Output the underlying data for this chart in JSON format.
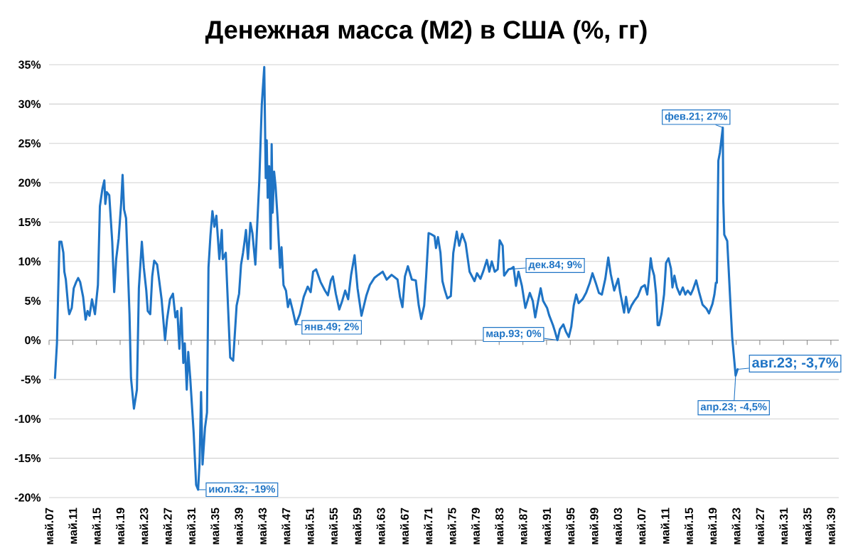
{
  "chart_data": {
    "type": "line",
    "title": "Денежная масса (M2) в США (%, гг)",
    "x": [
      "1908-05",
      "1908-09",
      "1909-02",
      "1909-06",
      "1909-10",
      "1909-12",
      "1910-03",
      "1910-08",
      "1910-10",
      "1911-03",
      "1911-07",
      "1911-12",
      "1912-04",
      "1912-08",
      "1913-02",
      "1913-07",
      "1913-11",
      "1914-03",
      "1914-08",
      "1915-02",
      "1915-08",
      "1915-12",
      "1916-05",
      "1916-09",
      "1916-11",
      "1917-02",
      "1917-07",
      "1918-01",
      "1918-05",
      "1918-09",
      "1919-02",
      "1919-07",
      "1919-10",
      "1920-01",
      "1920-05",
      "1920-12",
      "1921-03",
      "1921-09",
      "1922-03",
      "1922-07",
      "1923-01",
      "1923-05",
      "1923-10",
      "1924-01",
      "1924-06",
      "1924-10",
      "1925-02",
      "1925-08",
      "1926-05",
      "1926-12",
      "1927-04",
      "1927-10",
      "1928-04",
      "1928-09",
      "1929-01",
      "1929-05",
      "1929-09",
      "1930-01",
      "1930-04",
      "1930-08",
      "1930-11",
      "1931-03",
      "1931-10",
      "1932-03",
      "1932-07",
      "1932-10",
      "1933-01",
      "1933-04",
      "1933-09",
      "1934-01",
      "1934-04",
      "1934-08",
      "1934-12",
      "1935-04",
      "1935-08",
      "1936-02",
      "1936-07",
      "1936-09",
      "1937-03",
      "1937-08",
      "1937-12",
      "1938-06",
      "1939-01",
      "1939-06",
      "1939-10",
      "1940-02",
      "1940-05",
      "1940-08",
      "1940-12",
      "1941-05",
      "1941-09",
      "1942-03",
      "1942-11",
      "1943-04",
      "1943-09",
      "1943-12",
      "1944-02",
      "1944-04",
      "1944-07",
      "1944-10",
      "1944-12",
      "1945-02",
      "1945-05",
      "1945-08",
      "1945-12",
      "1946-05",
      "1946-08",
      "1946-12",
      "1947-05",
      "1947-09",
      "1948-01",
      "1948-07",
      "1949-01",
      "1949-09",
      "1950-05",
      "1951-01",
      "1951-07",
      "1951-12",
      "1952-06",
      "1953-03",
      "1953-12",
      "1954-06",
      "1954-12",
      "1955-04",
      "1955-10",
      "1956-05",
      "1956-11",
      "1957-05",
      "1957-11",
      "1958-05",
      "1958-12",
      "1959-06",
      "1960-02",
      "1960-12",
      "1961-07",
      "1962-04",
      "1962-12",
      "1963-09",
      "1964-05",
      "1965-03",
      "1966-03",
      "1966-08",
      "1967-01",
      "1967-06",
      "1967-12",
      "1968-08",
      "1969-04",
      "1969-10",
      "1970-03",
      "1970-09",
      "1971-01",
      "1971-06",
      "1971-10",
      "1972-06",
      "1972-09",
      "1973-01",
      "1973-06",
      "1973-10",
      "1974-03",
      "1974-08",
      "1975-03",
      "1975-08",
      "1976-03",
      "1976-08",
      "1977-02",
      "1977-09",
      "1978-05",
      "1979-03",
      "1979-08",
      "1980-03",
      "1980-09",
      "1981-04",
      "1981-09",
      "1982-02",
      "1982-08",
      "1983-02",
      "1983-06",
      "1983-12",
      "1984-03",
      "1984-12",
      "1985-06",
      "1985-10",
      "1986-03",
      "1986-08",
      "1987-03",
      "1987-10",
      "1988-07",
      "1989-01",
      "1989-06",
      "1989-12",
      "1990-05",
      "1990-10",
      "1991-06",
      "1991-10",
      "1992-06",
      "1992-10",
      "1993-03",
      "1993-08",
      "1994-03",
      "1994-08",
      "1995-02",
      "1995-07",
      "1995-12",
      "1996-05",
      "1996-10",
      "1997-06",
      "1998-01",
      "1998-08",
      "1999-02",
      "1999-09",
      "2000-03",
      "2000-09",
      "2001-04",
      "2001-10",
      "2002-03",
      "2002-10",
      "2003-06",
      "2003-10",
      "2004-06",
      "2004-10",
      "2005-03",
      "2005-09",
      "2006-03",
      "2006-10",
      "2007-05",
      "2007-12",
      "2008-05",
      "2008-08",
      "2008-12",
      "2009-03",
      "2009-07",
      "2009-11",
      "2010-02",
      "2010-05",
      "2010-10",
      "2011-03",
      "2011-07",
      "2011-12",
      "2012-05",
      "2012-08",
      "2012-12",
      "2013-05",
      "2013-11",
      "2014-05",
      "2014-10",
      "2015-03",
      "2015-09",
      "2016-02",
      "2016-08",
      "2017-02",
      "2017-09",
      "2018-05",
      "2018-10",
      "2019-05",
      "2019-09",
      "2019-12",
      "2020-02",
      "2020-05",
      "2020-08",
      "2021-02",
      "2021-03",
      "2021-05",
      "2021-11",
      "2022-05",
      "2022-09",
      "2023-04",
      "2023-08"
    ],
    "series": [
      {
        "color": "#1f74c5",
        "values": [
          -4.8,
          -0.4,
          12.5,
          12.5,
          11.1,
          8.7,
          7.7,
          4.1,
          3.3,
          4.1,
          6.6,
          7.4,
          7.9,
          7.4,
          5.5,
          2.6,
          3.7,
          3.1,
          5.2,
          3.3,
          7.0,
          17.0,
          19.2,
          20.3,
          17.3,
          18.8,
          18.4,
          12.5,
          6.1,
          10.3,
          12.9,
          17.3,
          21.0,
          16.6,
          15.5,
          3.3,
          -4.8,
          -8.7,
          -6.3,
          6.6,
          12.5,
          9.2,
          6.3,
          3.7,
          3.3,
          8.1,
          10.1,
          9.6,
          5.2,
          0,
          2.6,
          5.2,
          5.9,
          2.9,
          3.7,
          -1.1,
          4.1,
          -2.9,
          -0.4,
          -6.3,
          -1.5,
          -4.8,
          -11.8,
          -18.4,
          -19,
          -15.5,
          -6.6,
          -15.8,
          -11.1,
          -9.2,
          9.2,
          13.3,
          16.4,
          14.4,
          15.8,
          10.3,
          14.0,
          10.3,
          11.1,
          3.7,
          -2.2,
          -2.6,
          4.4,
          5.9,
          9.6,
          11.1,
          12.5,
          14.0,
          10.3,
          14.9,
          13.6,
          9.6,
          20.3,
          29.9,
          34.7,
          20.6,
          25.4,
          18.1,
          22.1,
          11.6,
          24.9,
          16.2,
          21.4,
          19.5,
          15.5,
          9.2,
          11.8,
          7.0,
          6.3,
          4.2,
          5.2,
          3.7,
          2,
          3.3,
          5.5,
          6.8,
          6.1,
          8.7,
          9.0,
          7.4,
          6.3,
          5.7,
          7.6,
          8.1,
          5.9,
          3.9,
          5.0,
          6.3,
          5.2,
          8.3,
          10.8,
          6.6,
          3.1,
          5.7,
          7.0,
          7.9,
          8.3,
          8.7,
          7.7,
          8.3,
          7.7,
          5.5,
          4.2,
          8.1,
          9.4,
          7.7,
          7.6,
          4.4,
          2.7,
          4.4,
          8.1,
          13.6,
          13.5,
          13.2,
          11.7,
          13.1,
          11.1,
          7.5,
          6.3,
          5.3,
          5.6,
          11.1,
          13.8,
          12.0,
          13.5,
          12.3,
          8.7,
          7.5,
          8.5,
          7.8,
          8.8,
          10.2,
          8.7,
          10.0,
          8.7,
          9.0,
          12.7,
          12.0,
          8.2,
          9,
          9.1,
          9.3,
          6.9,
          8.7,
          6.9,
          4.1,
          6.0,
          5.0,
          2.9,
          5.0,
          6.6,
          5.0,
          4.1,
          3.2,
          1.9,
          1.1,
          0,
          1.4,
          2.0,
          1.1,
          0.4,
          1.7,
          4.4,
          5.8,
          4.7,
          5.2,
          6.0,
          7.2,
          8.5,
          7.2,
          6.0,
          5.8,
          7.8,
          10.5,
          8.4,
          6.3,
          7.8,
          6.1,
          3.5,
          5.5,
          3.5,
          4.4,
          5.0,
          5.6,
          6.7,
          7.0,
          5.8,
          7.6,
          10.4,
          9.1,
          8.2,
          5.8,
          1.9,
          1.9,
          3.4,
          5.8,
          9.8,
          10.4,
          9.1,
          6.7,
          8.2,
          6.7,
          5.8,
          6.7,
          5.8,
          6.3,
          5.8,
          6.5,
          7.6,
          6.1,
          4.5,
          4.0,
          3.4,
          4.6,
          5.8,
          7.3,
          7.3,
          22.8,
          23.8,
          27,
          17.7,
          13.4,
          12.6,
          5.2,
          0.4,
          -4.5,
          -3.7
        ]
      }
    ],
    "xlim": [
      "1907-05",
      "2040-09"
    ],
    "ylim": [
      -20,
      35
    ],
    "xticks": [
      {
        "value": "1907-05",
        "label": "май.07"
      },
      {
        "value": "1911-05",
        "label": "май.11"
      },
      {
        "value": "1915-05",
        "label": "май.15"
      },
      {
        "value": "1919-05",
        "label": "май.19"
      },
      {
        "value": "1923-05",
        "label": "май.23"
      },
      {
        "value": "1927-05",
        "label": "май.27"
      },
      {
        "value": "1931-05",
        "label": "май.31"
      },
      {
        "value": "1935-05",
        "label": "май.35"
      },
      {
        "value": "1939-05",
        "label": "май.39"
      },
      {
        "value": "1943-05",
        "label": "май.43"
      },
      {
        "value": "1947-05",
        "label": "май.47"
      },
      {
        "value": "1951-05",
        "label": "май.51"
      },
      {
        "value": "1955-05",
        "label": "май.55"
      },
      {
        "value": "1959-05",
        "label": "май.59"
      },
      {
        "value": "1963-05",
        "label": "май.63"
      },
      {
        "value": "1967-05",
        "label": "май.67"
      },
      {
        "value": "1971-05",
        "label": "май.71"
      },
      {
        "value": "1975-05",
        "label": "май.75"
      },
      {
        "value": "1979-05",
        "label": "май.79"
      },
      {
        "value": "1983-05",
        "label": "май.83"
      },
      {
        "value": "1987-05",
        "label": "май.87"
      },
      {
        "value": "1991-05",
        "label": "май.91"
      },
      {
        "value": "1995-05",
        "label": "май.95"
      },
      {
        "value": "1999-05",
        "label": "май.99"
      },
      {
        "value": "2003-05",
        "label": "май.03"
      },
      {
        "value": "2007-05",
        "label": "май.07"
      },
      {
        "value": "2011-05",
        "label": "май.11"
      },
      {
        "value": "2015-05",
        "label": "май.15"
      },
      {
        "value": "2019-05",
        "label": "май.19"
      },
      {
        "value": "2023-05",
        "label": "май.23"
      },
      {
        "value": "2027-05",
        "label": "май.27"
      },
      {
        "value": "2031-05",
        "label": "май.31"
      },
      {
        "value": "2035-05",
        "label": "май.35"
      },
      {
        "value": "2039-05",
        "label": "май.39"
      }
    ],
    "yticks": [
      {
        "value": -20,
        "label": "-20%"
      },
      {
        "value": -15,
        "label": "-15%"
      },
      {
        "value": -10,
        "label": "-10%"
      },
      {
        "value": -5,
        "label": "-5%"
      },
      {
        "value": 0,
        "label": "0%"
      },
      {
        "value": 5,
        "label": "5%"
      },
      {
        "value": 10,
        "label": "10%"
      },
      {
        "value": 15,
        "label": "15%"
      },
      {
        "value": 20,
        "label": "20%"
      },
      {
        "value": 25,
        "label": "25%"
      },
      {
        "value": 30,
        "label": "30%"
      },
      {
        "value": 35,
        "label": "35%"
      }
    ],
    "grid": "y",
    "annotations": [
      {
        "text": "июл.32; -19%",
        "x": "1932-07",
        "y": -19
      },
      {
        "text": "янв.49; 2%",
        "x": "1949-01",
        "y": 2
      },
      {
        "text": "дек.84; 9%",
        "x": "1984-12",
        "y": 9
      },
      {
        "text": "мар.93; 0%",
        "x": "1993-03",
        "y": 0
      },
      {
        "text": "фев.21; 27%",
        "x": "2021-02",
        "y": 27
      },
      {
        "text": "апр.23; -4,5%",
        "x": "2023-04",
        "y": -4.5
      },
      {
        "text": "авг.23; -3,7%",
        "x": "2023-08",
        "y": -3.7
      }
    ]
  }
}
